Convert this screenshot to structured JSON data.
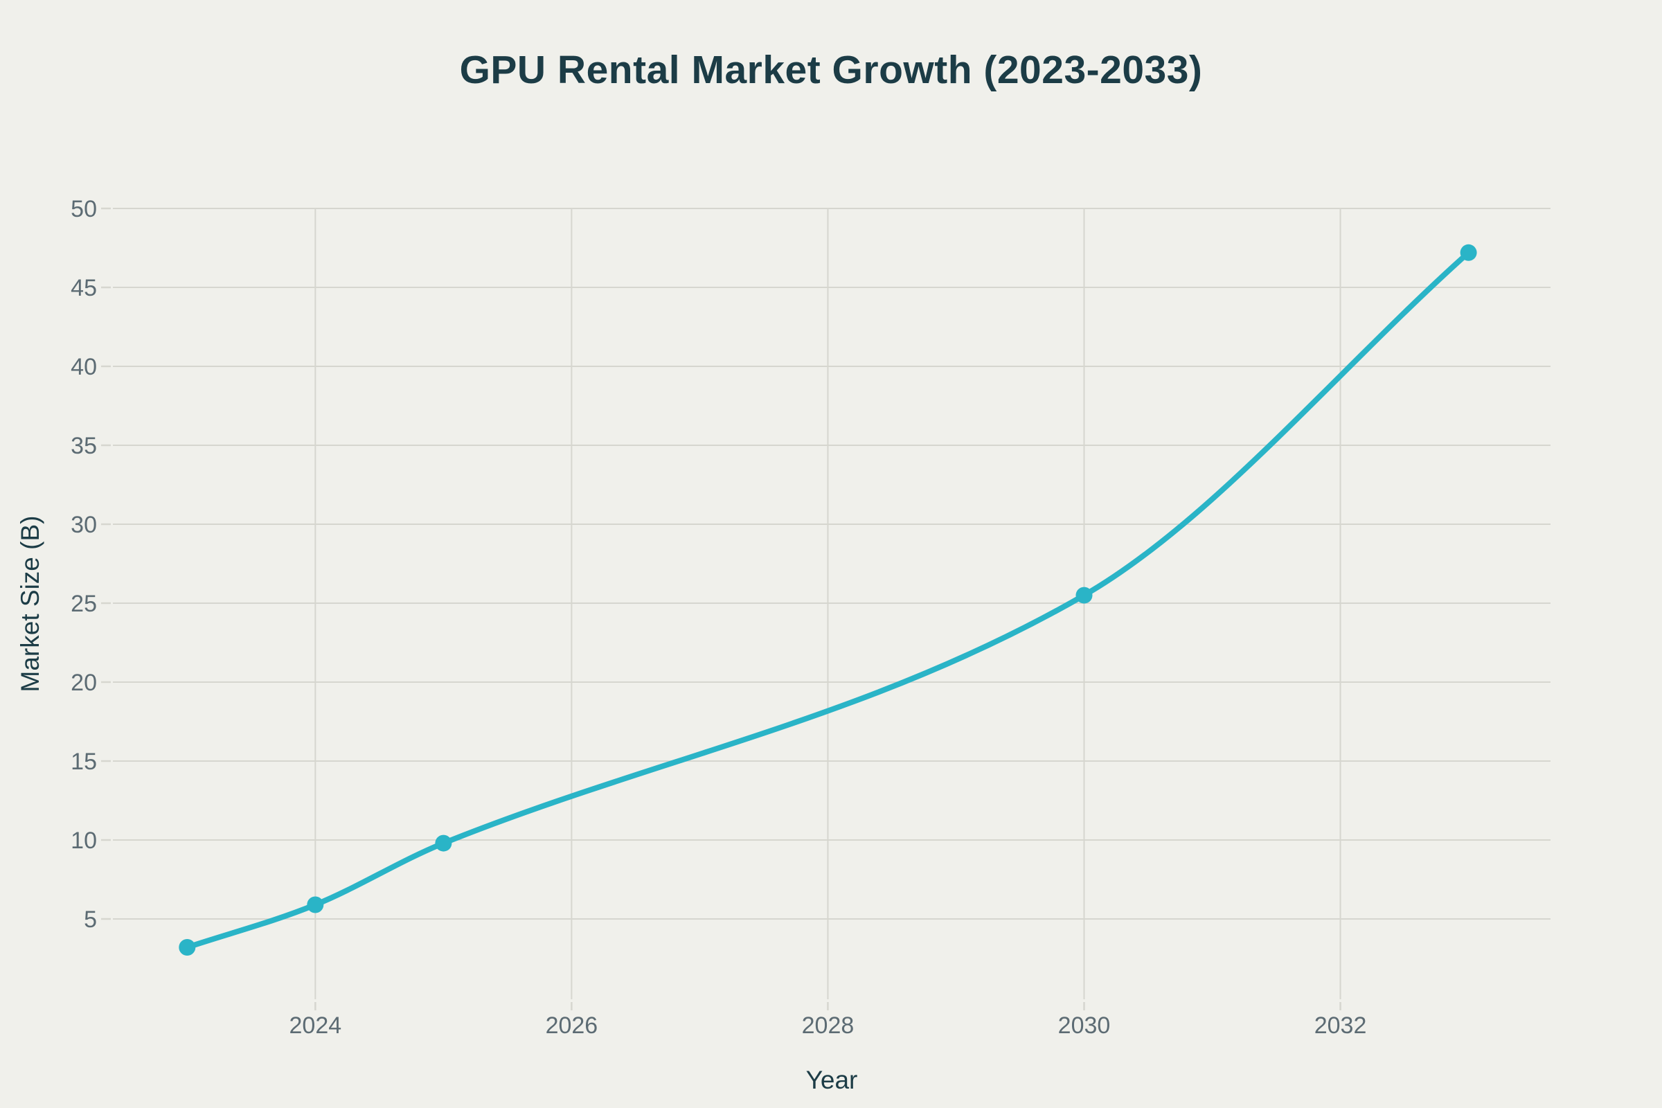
{
  "title": "GPU Rental Market Growth (2023-2033)",
  "colors": {
    "background": "#f0f0eb",
    "line": "#2ab4c7",
    "grid": "#d6d6cf",
    "tick_label": "#5c6b73",
    "title": "#1c3c46",
    "axis_label": "#1c3c46"
  },
  "chart_data": {
    "type": "line",
    "title": "GPU Rental Market Growth (2023-2033)",
    "xlabel": "Year",
    "ylabel": "Market Size (B)",
    "series": [
      {
        "name": "Market Size (B)",
        "x": [
          2023,
          2024,
          2025,
          2030,
          2033
        ],
        "y": [
          3.2,
          5.9,
          9.8,
          25.5,
          47.2
        ]
      }
    ],
    "curve": "spline",
    "markers": true,
    "xticks": [
      2024,
      2026,
      2028,
      2030,
      2032
    ],
    "yticks": [
      5,
      10,
      15,
      20,
      25,
      30,
      35,
      40,
      45,
      50
    ],
    "xlim": [
      2022.42,
      2033.64
    ],
    "ylim": [
      0,
      50
    ],
    "grid": true,
    "legend": false
  }
}
